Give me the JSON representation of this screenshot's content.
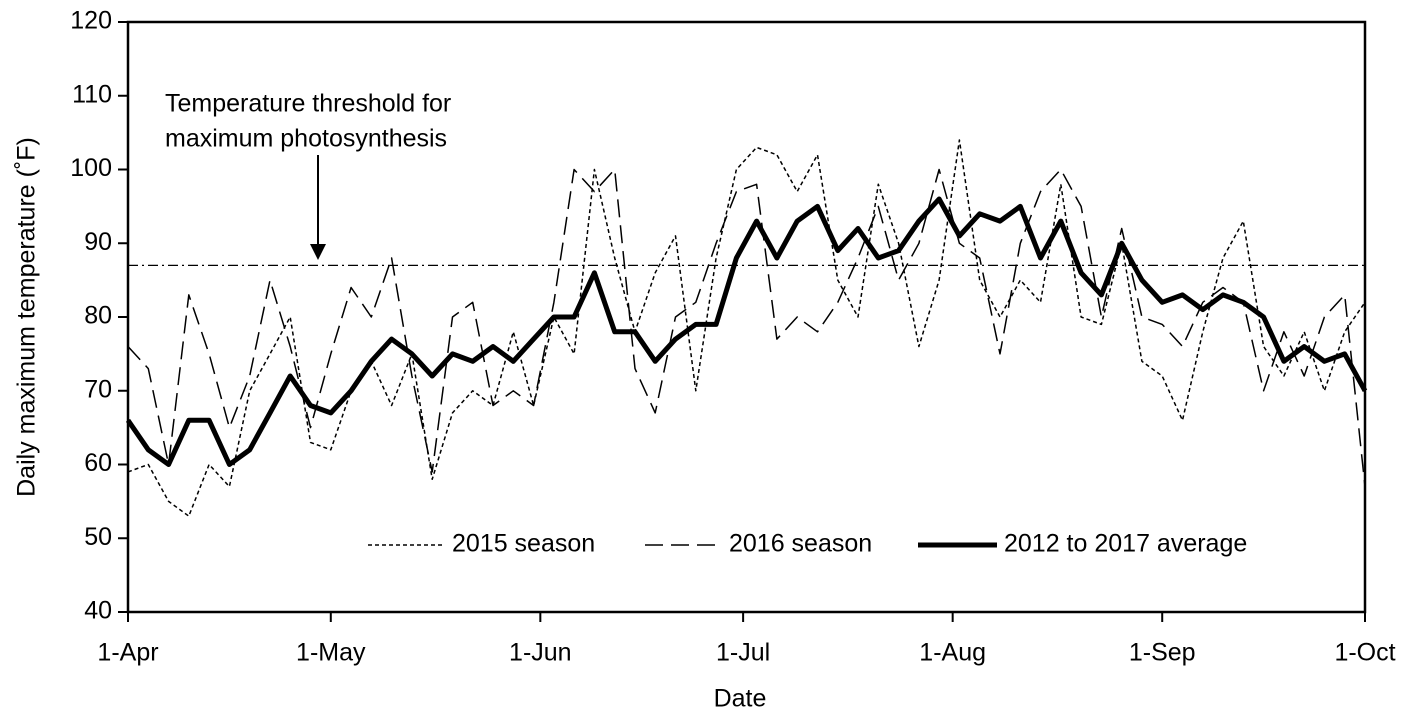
{
  "chart_data": {
    "type": "line",
    "x_label": "Date",
    "y_label": "Daily maximum temperature  (˚F)",
    "x": [
      0,
      3,
      6,
      9,
      12,
      15,
      18,
      21,
      24,
      27,
      30,
      33,
      36,
      39,
      42,
      45,
      48,
      51,
      54,
      57,
      60,
      63,
      66,
      69,
      72,
      75,
      78,
      81,
      84,
      87,
      90,
      93,
      96,
      99,
      102,
      105,
      108,
      111,
      114,
      117,
      120,
      123,
      126,
      129,
      132,
      135,
      138,
      141,
      144,
      147,
      150,
      153,
      156,
      159,
      162,
      165,
      168,
      171,
      174,
      177,
      180,
      183
    ],
    "series": [
      {
        "name": "2015 season",
        "color": "#000000",
        "style": "dotted",
        "width": 1.5,
        "values": [
          59,
          60,
          55,
          53,
          60,
          57,
          70,
          75,
          80,
          63,
          62,
          70,
          74,
          68,
          75,
          58,
          67,
          70,
          68,
          78,
          68,
          80,
          75,
          100,
          88,
          78,
          86,
          91,
          70,
          88,
          100,
          103,
          102,
          97,
          102,
          85,
          80,
          98,
          90,
          76,
          85,
          104,
          85,
          80,
          85,
          82,
          98,
          80,
          79,
          90,
          74,
          72,
          66,
          78,
          88,
          93,
          76,
          72,
          78,
          70,
          78,
          82
        ]
      },
      {
        "name": "2016 season",
        "color": "#000000",
        "style": "dashed",
        "width": 1.5,
        "values": [
          76,
          73,
          60,
          83,
          75,
          65,
          72,
          85,
          76,
          65,
          75,
          84,
          80,
          88,
          72,
          59,
          80,
          82,
          68,
          70,
          68,
          82,
          100,
          97,
          100,
          73,
          67,
          80,
          82,
          90,
          97,
          98,
          77,
          80,
          78,
          82,
          88,
          95,
          85,
          90,
          100,
          90,
          88,
          75,
          90,
          97,
          100,
          95,
          80,
          92,
          80,
          79,
          76,
          82,
          84,
          82,
          70,
          78,
          72,
          80,
          83,
          57
        ]
      },
      {
        "name": "2012 to 2017 average",
        "color": "#000000",
        "style": "solid",
        "width": 5,
        "values": [
          66,
          62,
          60,
          66,
          66,
          60,
          62,
          67,
          72,
          68,
          67,
          70,
          74,
          77,
          75,
          72,
          75,
          74,
          76,
          74,
          77,
          80,
          80,
          86,
          78,
          78,
          74,
          77,
          79,
          79,
          88,
          93,
          88,
          93,
          95,
          89,
          92,
          88,
          89,
          93,
          96,
          91,
          94,
          93,
          95,
          88,
          93,
          86,
          83,
          90,
          85,
          82,
          83,
          81,
          83,
          82,
          80,
          74,
          76,
          74,
          75,
          70
        ]
      }
    ],
    "threshold": {
      "value": 87,
      "label": [
        "Temperature threshold for",
        "maximum photosynthesis"
      ]
    },
    "xlim": [
      0,
      183
    ],
    "xticks": [
      {
        "value": 0,
        "label": "1-Apr"
      },
      {
        "value": 30,
        "label": "1-May"
      },
      {
        "value": 61,
        "label": "1-Jun"
      },
      {
        "value": 91,
        "label": "1-Jul"
      },
      {
        "value": 122,
        "label": "1-Aug"
      },
      {
        "value": 153,
        "label": "1-Sep"
      },
      {
        "value": 183,
        "label": "1-Oct"
      }
    ],
    "ylim": [
      40,
      120
    ],
    "yticks": [
      40,
      50,
      60,
      70,
      80,
      90,
      100,
      110,
      120
    ],
    "grid": false,
    "legend": "bottom"
  }
}
